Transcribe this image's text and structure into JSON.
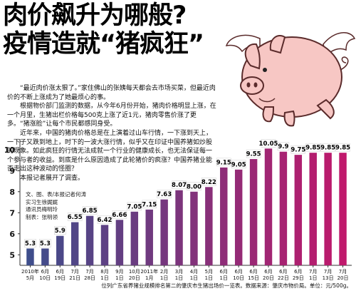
{
  "headline": {
    "line1": "肉价飙升为哪般?",
    "line2": "疫情造就“猪疯狂”"
  },
  "article": {
    "paragraphs": [
      "“最近肉价涨太狠了。”家住佛山的张姨每天都会去市场买菜，但最近肉价的不断上涨成为了她最烦心的事。",
      "根据物价部门监测的数据，从今年6月份开始，猪肉价格明显上涨，在一个月里，生猪出栏价格每500克上涨了近1元，猪肉零售价涨了更多。“猪涨脸”让每个市民都感同身受。",
      "近年来，中国的猪肉价格总是在上演着过山车行情，一下涨到天上，一下子又跌到地上，时下的一波大涨行情，似乎又在印证中国养猪如炒股的现象。如此疯狂的行情无法成就一个行业的健康成长，也无法保证每一个参与者的收益。到底是什么原因造成了此轮猪价的疯涨？中国养猪业能否走出这种波动的怪圈？",
      "本报记者展开了调查。"
    ]
  },
  "credits": {
    "line1": "文、图、表/本报记者何涛",
    "line2": "实习生徐娓娓",
    "line3": "通讯员梅明玲",
    "line4": "制表：张明领"
  },
  "footnote": "位列广东省养猪业规模排名第二的肇庆市生猪出场价一览表。数据来源：肇庆市物价局。单位：元/500g。",
  "colors": {
    "bar_start": "#3b4f8c",
    "bar_end": "#c2186b",
    "pig_body": "#f7c7c4",
    "pig_outline": "#5a2b2b"
  },
  "icons": [
    "flying-pig-illustration",
    "wing-icon"
  ],
  "chart_data": {
    "type": "bar",
    "categories": [
      [
        "2010年",
        "5月"
      ],
      [
        "6月",
        "10日"
      ],
      [
        "6月",
        "19日"
      ],
      [
        "7月",
        "21日"
      ],
      [
        "7月",
        "28日"
      ],
      [
        "8月",
        "1日"
      ],
      [
        "9月",
        "1日"
      ],
      [
        "10月",
        "20日"
      ],
      [
        "2011年",
        "1月"
      ],
      [
        "2月",
        "1日"
      ],
      [
        "3月",
        "1日"
      ],
      [
        "4月",
        "1日"
      ],
      [
        "5月",
        "1日"
      ],
      [
        "6月",
        "1日"
      ],
      [
        "6月",
        "10日"
      ],
      [
        "6月",
        "15日"
      ],
      [
        "6月",
        "20日"
      ],
      [
        "6月",
        "22日"
      ],
      [
        "6月",
        "29日"
      ],
      [
        "7月",
        "1日"
      ],
      [
        "7月",
        "13日"
      ],
      [
        "7月",
        "20日"
      ]
    ],
    "values": [
      5.3,
      5.3,
      5.9,
      6.55,
      6.85,
      6.42,
      6.66,
      7.05,
      7.15,
      7.63,
      8.07,
      8.0,
      8.22,
      9.15,
      9.05,
      9.55,
      10.05,
      9.9,
      9.75,
      9.85,
      9.85,
      9.85
    ],
    "value_labels": [
      "5.3",
      "5.3",
      "5.9",
      "6.55",
      "6.85",
      "6.42",
      "6.66",
      "7.05",
      "7.15",
      "7.63",
      "8.07",
      "8.00",
      "8.22",
      "9.15",
      "9.05",
      "9.55",
      "10.05",
      "9.9",
      "9.75",
      "9.85",
      "9.85",
      "9.85"
    ],
    "yticks": [
      "5",
      "6",
      "7",
      "8",
      "9",
      "10"
    ],
    "ylim": [
      4.5,
      10.5
    ],
    "grid": false,
    "legend": "none"
  }
}
